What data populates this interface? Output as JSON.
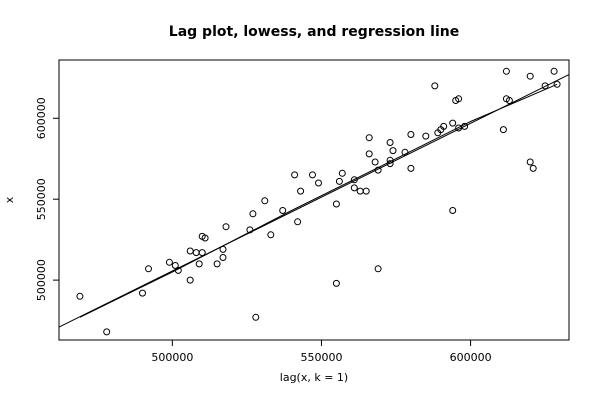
{
  "chart_data": {
    "type": "scatter",
    "title": "Lag plot, lowess, and regression line",
    "xlabel": "lag(x, k = 1)",
    "ylabel": "x",
    "xlim": [
      462000,
      633000
    ],
    "ylim": [
      463000,
      636000
    ],
    "x_ticks": [
      500000,
      550000,
      600000
    ],
    "x_tick_labels": [
      "500000",
      "550000",
      "600000"
    ],
    "y_ticks": [
      500000,
      550000,
      600000
    ],
    "y_tick_labels": [
      "500000",
      "550000",
      "600000"
    ],
    "grid": false,
    "points": [
      {
        "x": 469000,
        "y": 490000
      },
      {
        "x": 478000,
        "y": 468000
      },
      {
        "x": 490000,
        "y": 492000
      },
      {
        "x": 492000,
        "y": 507000
      },
      {
        "x": 499000,
        "y": 511000
      },
      {
        "x": 501000,
        "y": 509000
      },
      {
        "x": 502000,
        "y": 506000
      },
      {
        "x": 506000,
        "y": 518000
      },
      {
        "x": 506000,
        "y": 500000
      },
      {
        "x": 508000,
        "y": 517000
      },
      {
        "x": 509000,
        "y": 510000
      },
      {
        "x": 510000,
        "y": 527000
      },
      {
        "x": 510000,
        "y": 517000
      },
      {
        "x": 511000,
        "y": 526000
      },
      {
        "x": 515000,
        "y": 510000
      },
      {
        "x": 517000,
        "y": 519000
      },
      {
        "x": 517000,
        "y": 514000
      },
      {
        "x": 518000,
        "y": 533000
      },
      {
        "x": 526000,
        "y": 531000
      },
      {
        "x": 527000,
        "y": 541000
      },
      {
        "x": 528000,
        "y": 477000
      },
      {
        "x": 531000,
        "y": 549000
      },
      {
        "x": 533000,
        "y": 528000
      },
      {
        "x": 537000,
        "y": 543000
      },
      {
        "x": 541000,
        "y": 565000
      },
      {
        "x": 542000,
        "y": 536000
      },
      {
        "x": 543000,
        "y": 555000
      },
      {
        "x": 547000,
        "y": 565000
      },
      {
        "x": 549000,
        "y": 560000
      },
      {
        "x": 555000,
        "y": 547000
      },
      {
        "x": 555000,
        "y": 498000
      },
      {
        "x": 556000,
        "y": 561000
      },
      {
        "x": 557000,
        "y": 566000
      },
      {
        "x": 561000,
        "y": 557000
      },
      {
        "x": 561000,
        "y": 562000
      },
      {
        "x": 563000,
        "y": 555000
      },
      {
        "x": 565000,
        "y": 555000
      },
      {
        "x": 566000,
        "y": 578000
      },
      {
        "x": 566000,
        "y": 588000
      },
      {
        "x": 568000,
        "y": 573000
      },
      {
        "x": 569000,
        "y": 568000
      },
      {
        "x": 569000,
        "y": 507000
      },
      {
        "x": 573000,
        "y": 574000
      },
      {
        "x": 573000,
        "y": 572000
      },
      {
        "x": 573000,
        "y": 585000
      },
      {
        "x": 574000,
        "y": 580000
      },
      {
        "x": 578000,
        "y": 579000
      },
      {
        "x": 580000,
        "y": 590000
      },
      {
        "x": 580000,
        "y": 569000
      },
      {
        "x": 585000,
        "y": 589000
      },
      {
        "x": 588000,
        "y": 620000
      },
      {
        "x": 589000,
        "y": 591000
      },
      {
        "x": 590000,
        "y": 593000
      },
      {
        "x": 591000,
        "y": 595000
      },
      {
        "x": 594000,
        "y": 597000
      },
      {
        "x": 594000,
        "y": 543000
      },
      {
        "x": 595000,
        "y": 611000
      },
      {
        "x": 596000,
        "y": 612000
      },
      {
        "x": 596000,
        "y": 594000
      },
      {
        "x": 598000,
        "y": 595000
      },
      {
        "x": 611000,
        "y": 593000
      },
      {
        "x": 612000,
        "y": 612000
      },
      {
        "x": 612000,
        "y": 629000
      },
      {
        "x": 613000,
        "y": 611000
      },
      {
        "x": 620000,
        "y": 573000
      },
      {
        "x": 620000,
        "y": 626000
      },
      {
        "x": 621000,
        "y": 569000
      },
      {
        "x": 625000,
        "y": 620000
      },
      {
        "x": 628000,
        "y": 629000
      },
      {
        "x": 629000,
        "y": 621000
      }
    ],
    "lines": [
      {
        "role": "regression",
        "x": [
          462000,
          633000
        ],
        "y": [
          471000,
          627000
        ]
      },
      {
        "role": "lowess",
        "x": [
          469000,
          500000,
          540000,
          575000,
          600000,
          629000
        ],
        "y": [
          477000,
          505000,
          543000,
          575000,
          598000,
          621000
        ]
      }
    ]
  }
}
